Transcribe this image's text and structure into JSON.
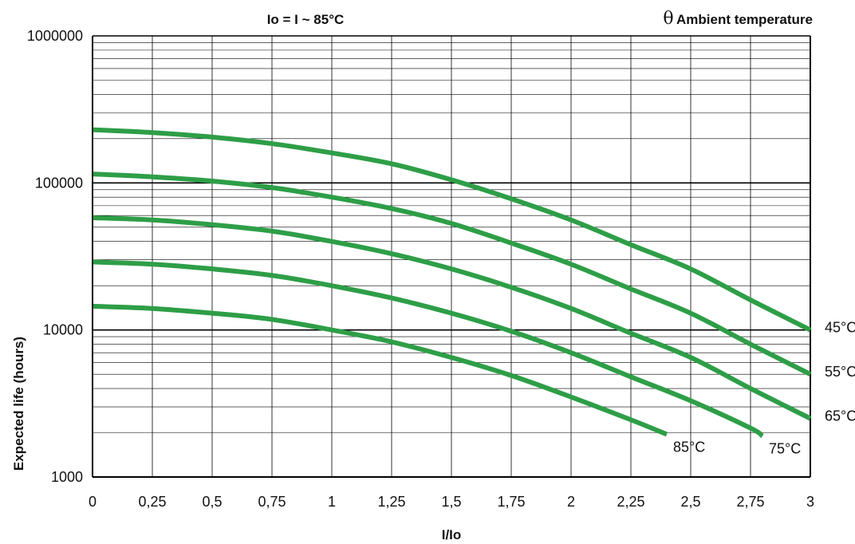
{
  "chart_data": {
    "type": "line",
    "header_left": "Io = I ~ 85°C",
    "header_right_symbol": "θ",
    "header_right_text": "Ambient temperature",
    "xlabel": "I/Io",
    "ylabel": "Expected life (hours)",
    "xlim": [
      0,
      3
    ],
    "ylim": [
      1000,
      1000000
    ],
    "yscale": "log",
    "grid": true,
    "x_ticks": [
      0,
      0.25,
      0.5,
      0.75,
      1,
      1.25,
      1.5,
      1.75,
      2,
      2.25,
      2.5,
      2.75,
      3
    ],
    "x_tick_labels": [
      "0",
      "0,25",
      "0,5",
      "0,75",
      "1",
      "1,25",
      "1,5",
      "1,75",
      "2",
      "2,25",
      "2,5",
      "2,75",
      "3"
    ],
    "y_ticks": [
      1000,
      10000,
      100000,
      1000000
    ],
    "y_tick_labels": [
      "1000",
      "10000",
      "100000",
      "1000000"
    ],
    "line_color": "#2e9e47",
    "series": [
      {
        "name": "45°C",
        "x": [
          0,
          0.25,
          0.5,
          0.75,
          1,
          1.25,
          1.5,
          1.75,
          2,
          2.25,
          2.5,
          2.75,
          3
        ],
        "values": [
          230000,
          220000,
          205000,
          185000,
          160000,
          135000,
          105000,
          78000,
          56000,
          38000,
          26000,
          16000,
          10000
        ]
      },
      {
        "name": "55°C",
        "x": [
          0,
          0.25,
          0.5,
          0.75,
          1,
          1.25,
          1.5,
          1.75,
          2,
          2.25,
          2.5,
          2.75,
          3
        ],
        "values": [
          115000,
          110000,
          103000,
          93000,
          80000,
          67000,
          53000,
          39000,
          28000,
          19000,
          13000,
          8000,
          5000
        ]
      },
      {
        "name": "65°C",
        "x": [
          0,
          0.25,
          0.5,
          0.75,
          1,
          1.25,
          1.5,
          1.75,
          2,
          2.25,
          2.5,
          2.75,
          3
        ],
        "values": [
          58000,
          56000,
          52000,
          47000,
          40000,
          33000,
          26000,
          19500,
          14000,
          9500,
          6500,
          4000,
          2500
        ]
      },
      {
        "name": "75°C",
        "x": [
          0,
          0.25,
          0.5,
          0.75,
          1,
          1.25,
          1.5,
          1.75,
          2,
          2.25,
          2.5,
          2.75,
          2.8
        ],
        "values": [
          29000,
          28000,
          26000,
          23500,
          20000,
          16500,
          13000,
          9800,
          7000,
          4800,
          3300,
          2150,
          1900
        ]
      },
      {
        "name": "85°C",
        "x": [
          0,
          0.25,
          0.5,
          0.75,
          1,
          1.25,
          1.5,
          1.75,
          2,
          2.25,
          2.4
        ],
        "values": [
          14500,
          14000,
          13000,
          11800,
          10000,
          8300,
          6500,
          4900,
          3500,
          2450,
          1950
        ]
      }
    ]
  }
}
